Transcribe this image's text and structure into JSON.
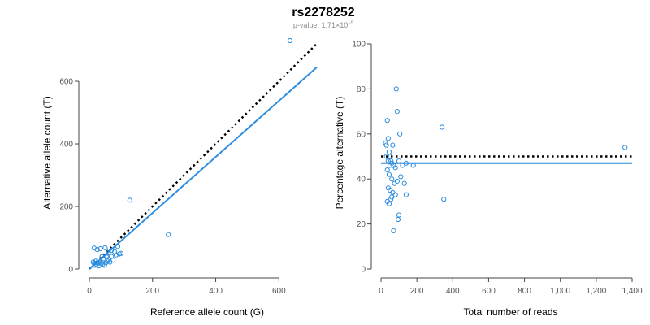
{
  "header": {
    "title": "rs2278252",
    "pvalue_prefix": "p-value: 1.71×10",
    "pvalue_exponent": "−5"
  },
  "chart_data": [
    {
      "type": "scatter",
      "xlabel": "Reference allele count (G)",
      "ylabel": "Alternative allele count (T)",
      "xlim": [
        0,
        720
      ],
      "ylim": [
        0,
        730
      ],
      "xticks": [
        0,
        200,
        400,
        600
      ],
      "xtick_labels": [
        "0",
        "200",
        "400",
        "600"
      ],
      "yticks": [
        0,
        200,
        400,
        600
      ],
      "ytick_labels": [
        "0",
        "200",
        "400",
        "600"
      ],
      "grid": false,
      "points": [
        [
          635,
          730
        ],
        [
          128,
          220
        ],
        [
          250,
          110
        ],
        [
          15,
          67
        ],
        [
          25,
          62
        ],
        [
          35,
          65
        ],
        [
          50,
          68
        ],
        [
          60,
          52
        ],
        [
          70,
          60
        ],
        [
          80,
          55
        ],
        [
          90,
          72
        ],
        [
          95,
          48
        ],
        [
          40,
          40
        ],
        [
          55,
          38
        ],
        [
          45,
          33
        ],
        [
          60,
          30
        ],
        [
          75,
          28
        ],
        [
          30,
          28
        ],
        [
          20,
          25
        ],
        [
          25,
          20
        ],
        [
          15,
          18
        ],
        [
          18,
          12
        ],
        [
          22,
          15
        ],
        [
          28,
          18
        ],
        [
          35,
          22
        ],
        [
          38,
          18
        ],
        [
          42,
          15
        ],
        [
          48,
          12
        ],
        [
          52,
          20
        ],
        [
          58,
          25
        ],
        [
          65,
          22
        ],
        [
          70,
          40
        ],
        [
          85,
          45
        ],
        [
          100,
          50
        ],
        [
          30,
          10
        ],
        [
          12,
          22
        ]
      ],
      "fit_line": {
        "x": [
          0,
          720
        ],
        "y": [
          0,
          645
        ]
      },
      "reference_line": {
        "x": [
          0,
          720
        ],
        "y": [
          0,
          720
        ]
      }
    },
    {
      "type": "scatter",
      "xlabel": "Total number of reads",
      "ylabel": "Percentage alternative (T)",
      "xlim": [
        0,
        1400
      ],
      "ylim": [
        0,
        100
      ],
      "xticks": [
        0,
        200,
        400,
        600,
        800,
        1000,
        1200,
        1400
      ],
      "xtick_labels": [
        "0",
        "200",
        "400",
        "600",
        "800",
        "1,000",
        "1,200",
        "1,400"
      ],
      "yticks": [
        0,
        20,
        40,
        60,
        80,
        100
      ],
      "ytick_labels": [
        "0",
        "20",
        "40",
        "60",
        "80",
        "100"
      ],
      "grid": false,
      "points": [
        [
          85,
          80
        ],
        [
          90,
          70
        ],
        [
          105,
          60
        ],
        [
          35,
          66
        ],
        [
          340,
          63
        ],
        [
          1360,
          54
        ],
        [
          350,
          31
        ],
        [
          25,
          56
        ],
        [
          30,
          55
        ],
        [
          40,
          58
        ],
        [
          45,
          52
        ],
        [
          50,
          50
        ],
        [
          55,
          48
        ],
        [
          60,
          47
        ],
        [
          70,
          46
        ],
        [
          80,
          45
        ],
        [
          100,
          48
        ],
        [
          120,
          46
        ],
        [
          140,
          47
        ],
        [
          180,
          46
        ],
        [
          35,
          44
        ],
        [
          45,
          42
        ],
        [
          60,
          40
        ],
        [
          75,
          38
        ],
        [
          90,
          39
        ],
        [
          110,
          41
        ],
        [
          130,
          38
        ],
        [
          40,
          36
        ],
        [
          50,
          35
        ],
        [
          65,
          34
        ],
        [
          80,
          33
        ],
        [
          140,
          33
        ],
        [
          35,
          30
        ],
        [
          45,
          29
        ],
        [
          55,
          31
        ],
        [
          60,
          32
        ],
        [
          100,
          24
        ],
        [
          95,
          22
        ],
        [
          70,
          17
        ],
        [
          30,
          50
        ],
        [
          40,
          48
        ],
        [
          50,
          46
        ],
        [
          65,
          55
        ]
      ],
      "fit_line": {
        "x": [
          0,
          1400
        ],
        "y": [
          47,
          47
        ]
      },
      "reference_line": {
        "x": [
          0,
          1400
        ],
        "y": [
          50,
          50
        ]
      }
    }
  ]
}
